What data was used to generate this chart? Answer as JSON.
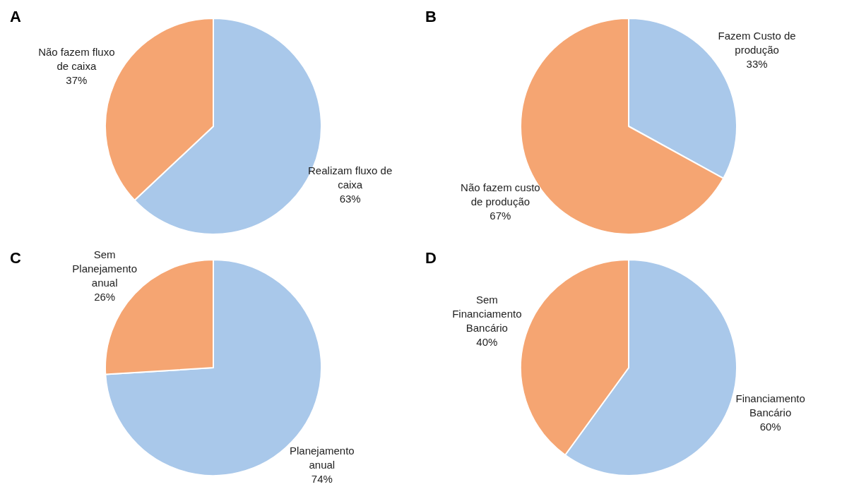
{
  "chart_data": [
    {
      "type": "pie",
      "title": "A",
      "categories": [
        "Realizam fluxo de caixa",
        "Não fazem fluxo de caixa"
      ],
      "values": [
        63,
        37
      ],
      "value_labels": [
        "63%",
        "37%"
      ],
      "colors": [
        "#a9c8ea",
        "#f5a572"
      ],
      "legend": false
    },
    {
      "type": "pie",
      "title": "B",
      "categories": [
        "Fazem Custo de produção",
        "Não fazem custo de produção"
      ],
      "values": [
        33,
        67
      ],
      "value_labels": [
        "33%",
        "67%"
      ],
      "colors": [
        "#a9c8ea",
        "#f5a572"
      ],
      "legend": false
    },
    {
      "type": "pie",
      "title": "C",
      "categories": [
        "Planejamento anual",
        "Sem Planejamento anual"
      ],
      "values": [
        74,
        26
      ],
      "value_labels": [
        "74%",
        "26%"
      ],
      "colors": [
        "#a9c8ea",
        "#f5a572"
      ],
      "legend": false
    },
    {
      "type": "pie",
      "title": "D",
      "categories": [
        "Financiamento Bancário",
        "Sem Financiamento Bancário"
      ],
      "values": [
        60,
        40
      ],
      "value_labels": [
        "60%",
        "40%"
      ],
      "colors": [
        "#a9c8ea",
        "#f5a572"
      ],
      "legend": false
    }
  ]
}
